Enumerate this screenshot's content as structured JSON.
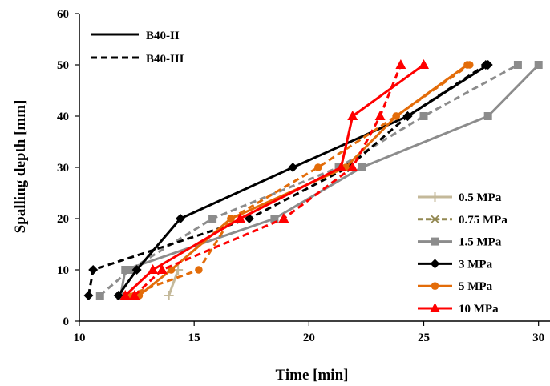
{
  "chart_data": {
    "type": "line",
    "xlabel": "Time [min]",
    "ylabel": "Spalling depth [mm]",
    "xlim": [
      10,
      30.5
    ],
    "ylim": [
      0,
      60
    ],
    "xticks": [
      10,
      15,
      20,
      25,
      30
    ],
    "yticks": [
      0,
      10,
      20,
      30,
      40,
      50,
      60
    ],
    "grid": false,
    "style_legend": {
      "placement": "top-left",
      "entries": [
        {
          "label": "B40-II",
          "dash": "solid"
        },
        {
          "label": "B40-III",
          "dash": "dashed"
        }
      ]
    },
    "pressure_legend": {
      "placement": "bottom-right",
      "entries": [
        {
          "label": "0.5 MPa",
          "color": "#c4b99a",
          "marker": "plus"
        },
        {
          "label": "0.75 MPa",
          "color": "#938953",
          "marker": "star"
        },
        {
          "label": "1.5 MPa",
          "color": "#8c8c8c",
          "marker": "square"
        },
        {
          "label": "3 MPa",
          "color": "#000000",
          "marker": "diamond"
        },
        {
          "label": "5 MPa",
          "color": "#e36c09",
          "marker": "circle"
        },
        {
          "label": "10 MPa",
          "color": "#ff0000",
          "marker": "triangle"
        }
      ]
    },
    "series": [
      {
        "pressure": "0.5 MPa",
        "specimen": "B40-II",
        "color": "#c4b99a",
        "dash": "solid",
        "marker": "plus",
        "points": [
          [
            13.9,
            5
          ],
          [
            14.3,
            10
          ]
        ]
      },
      {
        "pressure": "1.5 MPa",
        "specimen": "B40-II",
        "color": "#8c8c8c",
        "dash": "solid",
        "marker": "square",
        "points": [
          [
            11.8,
            5
          ],
          [
            12.0,
            10
          ],
          [
            18.5,
            20
          ],
          [
            22.3,
            30
          ],
          [
            27.8,
            40
          ],
          [
            30.0,
            50
          ]
        ]
      },
      {
        "pressure": "1.5 MPa",
        "specimen": "B40-III",
        "color": "#8c8c8c",
        "dash": "dashed",
        "marker": "square",
        "points": [
          [
            10.9,
            5
          ],
          [
            12.2,
            10
          ],
          [
            15.8,
            20
          ],
          [
            21.3,
            30
          ],
          [
            25.0,
            40
          ],
          [
            29.1,
            50
          ]
        ]
      },
      {
        "pressure": "3 MPa",
        "specimen": "B40-II",
        "color": "#000000",
        "dash": "solid",
        "marker": "diamond",
        "points": [
          [
            11.7,
            5
          ],
          [
            12.5,
            10
          ],
          [
            14.4,
            20
          ],
          [
            19.3,
            30
          ],
          [
            24.3,
            40
          ],
          [
            27.8,
            50
          ]
        ]
      },
      {
        "pressure": "3 MPa",
        "specimen": "B40-III",
        "color": "#000000",
        "dash": "dashed",
        "marker": "diamond",
        "points": [
          [
            10.4,
            5
          ],
          [
            10.6,
            10
          ],
          [
            17.4,
            20
          ],
          [
            21.7,
            30
          ],
          [
            24.3,
            40
          ],
          [
            27.7,
            50
          ]
        ]
      },
      {
        "pressure": "5 MPa",
        "specimen": "B40-II",
        "color": "#e36c09",
        "dash": "solid",
        "marker": "circle",
        "points": [
          [
            12.6,
            5
          ],
          [
            14.0,
            10
          ],
          [
            16.6,
            20
          ],
          [
            21.6,
            30
          ],
          [
            23.8,
            40
          ],
          [
            26.9,
            50
          ]
        ]
      },
      {
        "pressure": "5 MPa",
        "specimen": "B40-III",
        "color": "#e36c09",
        "dash": "dashed",
        "marker": "circle",
        "points": [
          [
            12.1,
            5
          ],
          [
            15.2,
            10
          ],
          [
            16.6,
            20
          ],
          [
            20.4,
            30
          ],
          [
            23.8,
            40
          ],
          [
            27.0,
            50
          ]
        ]
      },
      {
        "pressure": "10 MPa",
        "specimen": "B40-II",
        "color": "#ff0000",
        "dash": "solid",
        "marker": "triangle",
        "points": [
          [
            12.0,
            5
          ],
          [
            13.2,
            10
          ],
          [
            17.0,
            20
          ],
          [
            21.4,
            30
          ],
          [
            21.9,
            40
          ],
          [
            25.0,
            50
          ]
        ]
      },
      {
        "pressure": "10 MPa",
        "specimen": "B40-III",
        "color": "#ff0000",
        "dash": "dashed",
        "marker": "triangle",
        "points": [
          [
            12.4,
            5
          ],
          [
            13.6,
            10
          ],
          [
            18.9,
            20
          ],
          [
            21.9,
            30
          ],
          [
            23.1,
            40
          ],
          [
            24.0,
            50
          ]
        ]
      }
    ]
  }
}
